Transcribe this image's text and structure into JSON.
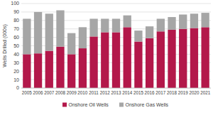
{
  "chart_data": {
    "type": "bar",
    "stacked": true,
    "grid": true,
    "legend": "bottom",
    "ylabel": "Wells Drilled (000s)",
    "categories": [
      "2005",
      "2006",
      "2007",
      "2008",
      "2009",
      "2010",
      "2011",
      "2012",
      "2013",
      "2014",
      "2015",
      "2016",
      "2017",
      "2018",
      "2019",
      "2020",
      "2021"
    ],
    "series": [
      {
        "name": "Onshore Oil Wells",
        "color": "#b3184a",
        "values": [
          40,
          41,
          44,
          49,
          40,
          47,
          61,
          66,
          66,
          72,
          55,
          59,
          67,
          69,
          70,
          71,
          72
        ]
      },
      {
        "name": "Onshore Gas Wells",
        "color": "#a6a6a6",
        "values": [
          42,
          49,
          44,
          43,
          25,
          25,
          21,
          16,
          16,
          14,
          13,
          14,
          15,
          15,
          17,
          17,
          17
        ]
      }
    ],
    "ylim": [
      0,
      100
    ],
    "yticks": [
      0,
      10,
      20,
      30,
      40,
      50,
      60,
      70,
      80,
      90,
      100
    ]
  }
}
